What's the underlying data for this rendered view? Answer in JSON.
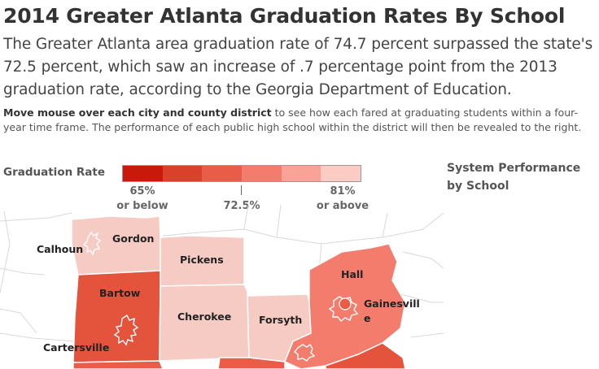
{
  "header": {
    "title": "2014 Greater Atlanta Graduation Rates By School",
    "lede": "The Greater Atlanta area graduation rate of 74.7 percent surpassed the state's 72.5 percent, which saw an increase of .7 percentage point from the 2013 graduation rate, according to the Georgia Department of Education."
  },
  "instructions": {
    "bold": "Move mouse over each city and county district",
    "rest": " to see how each fared at graduating students within a four-year time frame. The performance of each public high school within the district will then be revealed to the right."
  },
  "legend": {
    "title": "Graduation Rate",
    "colors": [
      "#c8190c",
      "#d9412c",
      "#e85c48",
      "#f37c6c",
      "#f9a397",
      "#fbcbc4"
    ],
    "low_label_line1": "65%",
    "low_label_line2": "or below",
    "mid_label": "72.5%",
    "high_label_line1": "81%",
    "high_label_line2": "or above"
  },
  "side_panel": {
    "title_line1": "System Performance",
    "title_line2": "by School"
  },
  "map": {
    "districts": [
      {
        "name": "Calhoun",
        "color": "#f6cbc4"
      },
      {
        "name": "Gordon",
        "color": "#f6cbc4"
      },
      {
        "name": "Pickens",
        "color": "#f6cbc4"
      },
      {
        "name": "Bartow",
        "color": "#e4543d"
      },
      {
        "name": "Cartersville",
        "color": "#e4543d"
      },
      {
        "name": "Cherokee",
        "color": "#f6cbc4"
      },
      {
        "name": "Forsyth",
        "color": "#f6cbc4"
      },
      {
        "name": "Hall",
        "color": "#f37c6c"
      },
      {
        "name": "Gainesville",
        "color": "#f37c6c"
      }
    ],
    "label_gainesville_line1": "Gainesvill",
    "label_gainesville_line2": "e",
    "background_border_color": "#d8d8d8",
    "city_boundary_color": "#ffffff"
  }
}
